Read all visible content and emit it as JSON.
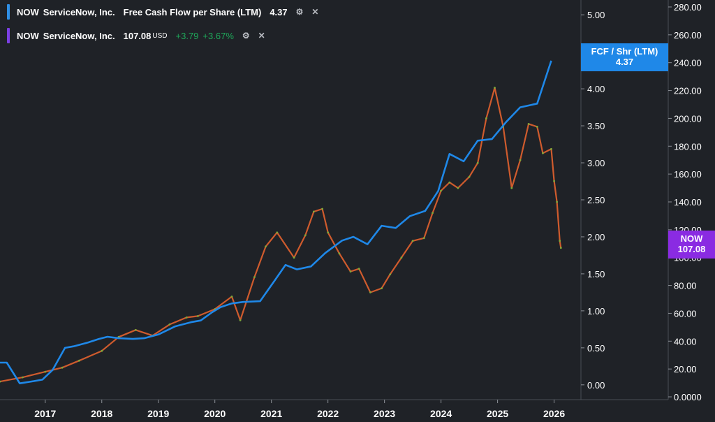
{
  "legend": [
    {
      "ticker": "NOW",
      "company": "ServiceNow, Inc.",
      "metric": "Free Cash Flow per Share (LTM)",
      "value": "4.37",
      "currency": "",
      "change_abs": "",
      "change_pct": "",
      "color": "#2f8fe6"
    },
    {
      "ticker": "NOW",
      "company": "ServiceNow, Inc.",
      "metric": "",
      "value": "107.08",
      "currency": "USD",
      "change_abs": "+3.79",
      "change_pct": "+3.67%",
      "color": "#7b3fe4"
    }
  ],
  "tags": {
    "fcf": {
      "label": "FCF / Shr (LTM)",
      "value": "4.37",
      "color": "#1f88e8"
    },
    "price": {
      "label": "NOW",
      "value": "107.08",
      "color": "#8a2be2"
    }
  },
  "chart_data": {
    "type": "line",
    "x_ticks": [
      "2017",
      "2018",
      "2019",
      "2020",
      "2021",
      "2022",
      "2023",
      "2024",
      "2025",
      "2026"
    ],
    "x_range": [
      2016.2,
      2026.45
    ],
    "y_left_label": "Free Cash Flow per Share (LTM)",
    "y_left_ticks": [
      "5.00",
      "4.50",
      "4.00",
      "3.50",
      "3.00",
      "2.50",
      "2.00",
      "1.50",
      "1.00",
      "0.50",
      "0.00"
    ],
    "y_left_range": [
      -0.2,
      5.2
    ],
    "y_right_ticks": [
      "280.00",
      "260.00",
      "240.00",
      "220.00",
      "200.00",
      "180.00",
      "160.00",
      "140.00",
      "120.00",
      "100.00",
      "80.00",
      "60.00",
      "40.00",
      "20.00",
      "0.0000"
    ],
    "y_right_range": [
      -2,
      285
    ],
    "grid": false,
    "series": [
      {
        "name": "Free Cash Flow per Share (LTM)",
        "axis": "left",
        "color": "#1f88e8",
        "points": [
          [
            2016.2,
            0.3
          ],
          [
            2016.32,
            0.3
          ],
          [
            2016.55,
            0.02
          ],
          [
            2016.8,
            0.05
          ],
          [
            2016.95,
            0.07
          ],
          [
            2017.13,
            0.2
          ],
          [
            2017.35,
            0.5
          ],
          [
            2017.5,
            0.52
          ],
          [
            2017.75,
            0.57
          ],
          [
            2017.95,
            0.62
          ],
          [
            2018.1,
            0.65
          ],
          [
            2018.3,
            0.63
          ],
          [
            2018.55,
            0.62
          ],
          [
            2018.75,
            0.63
          ],
          [
            2019.0,
            0.68
          ],
          [
            2019.3,
            0.79
          ],
          [
            2019.6,
            0.85
          ],
          [
            2019.75,
            0.87
          ],
          [
            2019.95,
            0.98
          ],
          [
            2020.1,
            1.05
          ],
          [
            2020.3,
            1.1
          ],
          [
            2020.5,
            1.12
          ],
          [
            2020.8,
            1.13
          ],
          [
            2021.05,
            1.4
          ],
          [
            2021.25,
            1.62
          ],
          [
            2021.45,
            1.56
          ],
          [
            2021.7,
            1.6
          ],
          [
            2021.95,
            1.78
          ],
          [
            2022.25,
            1.95
          ],
          [
            2022.45,
            2.0
          ],
          [
            2022.7,
            1.9
          ],
          [
            2022.95,
            2.15
          ],
          [
            2023.2,
            2.12
          ],
          [
            2023.45,
            2.28
          ],
          [
            2023.72,
            2.35
          ],
          [
            2023.95,
            2.62
          ],
          [
            2024.15,
            3.12
          ],
          [
            2024.4,
            3.02
          ],
          [
            2024.65,
            3.3
          ],
          [
            2024.9,
            3.32
          ],
          [
            2025.15,
            3.55
          ],
          [
            2025.4,
            3.75
          ],
          [
            2025.7,
            3.8
          ],
          [
            2025.95,
            4.38
          ]
        ]
      },
      {
        "name": "NOW ServiceNow, Inc.",
        "axis": "right",
        "color": "#e2622f",
        "points": [
          [
            2016.2,
            11
          ],
          [
            2016.6,
            14
          ],
          [
            2017.0,
            18
          ],
          [
            2017.3,
            21
          ],
          [
            2017.6,
            26
          ],
          [
            2018.0,
            33
          ],
          [
            2018.3,
            43
          ],
          [
            2018.6,
            48
          ],
          [
            2018.9,
            44
          ],
          [
            2019.2,
            52
          ],
          [
            2019.5,
            57
          ],
          [
            2019.7,
            58
          ],
          [
            2020.0,
            63
          ],
          [
            2020.3,
            72
          ],
          [
            2020.45,
            55
          ],
          [
            2020.7,
            86
          ],
          [
            2020.9,
            108
          ],
          [
            2021.1,
            118
          ],
          [
            2021.4,
            100
          ],
          [
            2021.6,
            116
          ],
          [
            2021.75,
            133
          ],
          [
            2021.9,
            135
          ],
          [
            2022.0,
            118
          ],
          [
            2022.2,
            103
          ],
          [
            2022.4,
            90
          ],
          [
            2022.55,
            92
          ],
          [
            2022.75,
            75
          ],
          [
            2022.95,
            78
          ],
          [
            2023.1,
            88
          ],
          [
            2023.3,
            100
          ],
          [
            2023.5,
            112
          ],
          [
            2023.7,
            114
          ],
          [
            2023.85,
            132
          ],
          [
            2024.0,
            148
          ],
          [
            2024.15,
            154
          ],
          [
            2024.3,
            150
          ],
          [
            2024.5,
            158
          ],
          [
            2024.65,
            168
          ],
          [
            2024.8,
            200
          ],
          [
            2024.95,
            222
          ],
          [
            2025.1,
            194
          ],
          [
            2025.25,
            150
          ],
          [
            2025.4,
            170
          ],
          [
            2025.55,
            196
          ],
          [
            2025.7,
            194
          ],
          [
            2025.8,
            175
          ],
          [
            2025.95,
            178
          ],
          [
            2026.0,
            155
          ],
          [
            2026.05,
            140
          ],
          [
            2026.1,
            112
          ],
          [
            2026.12,
            107
          ]
        ]
      }
    ]
  }
}
